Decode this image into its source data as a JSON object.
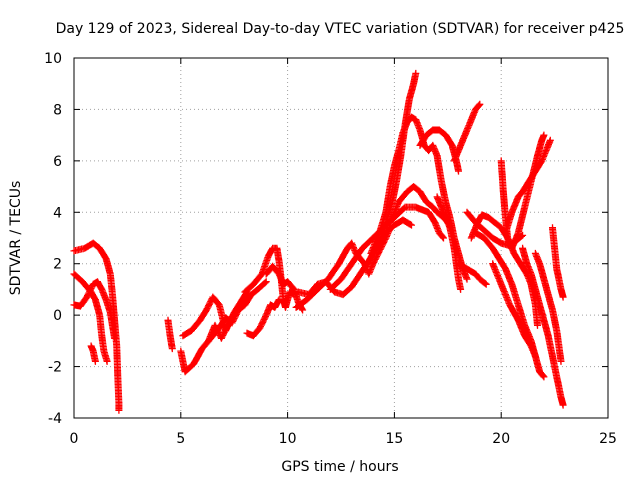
{
  "chart_data": {
    "type": "scatter",
    "title": "Day 129 of 2023, Sidereal Day-to-day VTEC variation (SDTVAR) for receiver p425",
    "xlabel": "GPS time / hours",
    "ylabel": "SDTVAR / TECUs",
    "xlim": [
      0,
      25
    ],
    "ylim": [
      -4,
      10
    ],
    "xticks": [
      "0",
      "5",
      "10",
      "15",
      "20",
      "25"
    ],
    "yticks": [
      "-4",
      "-2",
      "0",
      "2",
      "4",
      "6",
      "8",
      "10"
    ],
    "grid": true,
    "marker": "plus",
    "series_color": "#ff0000",
    "tracks": [
      [
        [
          0.0,
          2.5
        ],
        [
          0.5,
          2.6
        ],
        [
          0.9,
          2.8
        ],
        [
          1.2,
          2.6
        ],
        [
          1.5,
          2.2
        ],
        [
          1.7,
          1.6
        ],
        [
          1.8,
          0.8
        ],
        [
          1.9,
          -0.2
        ],
        [
          2.0,
          -1.2
        ],
        [
          2.05,
          -2.4
        ],
        [
          2.1,
          -3.4
        ],
        [
          2.1,
          -3.7
        ]
      ],
      [
        [
          0.0,
          1.6
        ],
        [
          0.4,
          1.3
        ],
        [
          0.8,
          0.9
        ],
        [
          1.0,
          0.6
        ],
        [
          1.2,
          0.0
        ],
        [
          1.3,
          -0.8
        ],
        [
          1.4,
          -1.4
        ],
        [
          1.55,
          -1.8
        ]
      ],
      [
        [
          0.0,
          0.4
        ],
        [
          0.3,
          0.35
        ],
        [
          0.6,
          0.7
        ],
        [
          0.9,
          1.2
        ],
        [
          1.1,
          1.3
        ],
        [
          1.3,
          1.0
        ],
        [
          1.5,
          0.6
        ],
        [
          1.7,
          0.1
        ],
        [
          1.8,
          -0.4
        ],
        [
          1.9,
          -0.9
        ]
      ],
      [
        [
          0.8,
          -1.2
        ],
        [
          0.9,
          -1.4
        ],
        [
          1.0,
          -1.8
        ]
      ],
      [
        [
          4.4,
          -0.2
        ],
        [
          4.5,
          -0.8
        ],
        [
          4.6,
          -1.3
        ]
      ],
      [
        [
          5.0,
          -1.4
        ],
        [
          5.2,
          -2.2
        ],
        [
          5.6,
          -1.9
        ],
        [
          6.0,
          -1.3
        ],
        [
          6.4,
          -0.9
        ],
        [
          6.8,
          -0.5
        ],
        [
          7.1,
          -0.1
        ],
        [
          7.4,
          -0.3
        ],
        [
          7.7,
          0.2
        ],
        [
          8.0,
          0.4
        ],
        [
          8.3,
          0.8
        ],
        [
          8.6,
          1.0
        ],
        [
          9.0,
          1.3
        ]
      ],
      [
        [
          5.1,
          -0.8
        ],
        [
          5.5,
          -0.6
        ],
        [
          5.9,
          -0.2
        ],
        [
          6.2,
          0.2
        ],
        [
          6.5,
          0.7
        ],
        [
          6.8,
          0.4
        ],
        [
          7.1,
          -0.6
        ],
        [
          7.5,
          0.1
        ],
        [
          7.8,
          0.5
        ],
        [
          8.1,
          0.9
        ]
      ],
      [
        [
          6.3,
          -1.0
        ],
        [
          6.6,
          -0.4
        ],
        [
          6.9,
          -0.9
        ],
        [
          7.2,
          -0.4
        ]
      ],
      [
        [
          8.0,
          0.9
        ],
        [
          8.4,
          1.2
        ],
        [
          8.8,
          1.6
        ],
        [
          9.1,
          2.3
        ],
        [
          9.3,
          2.6
        ],
        [
          9.5,
          2.6
        ],
        [
          9.6,
          2.1
        ],
        [
          9.7,
          1.4
        ],
        [
          9.8,
          0.6
        ],
        [
          9.9,
          0.3
        ],
        [
          10.1,
          0.9
        ],
        [
          10.3,
          0.8
        ]
      ],
      [
        [
          8.1,
          -0.7
        ],
        [
          8.4,
          -0.8
        ],
        [
          8.7,
          -0.5
        ],
        [
          9.0,
          0.0
        ],
        [
          9.2,
          0.4
        ],
        [
          9.4,
          0.3
        ],
        [
          9.6,
          0.6
        ]
      ],
      [
        [
          9.0,
          1.6
        ],
        [
          9.3,
          1.9
        ],
        [
          9.6,
          1.6
        ],
        [
          9.8,
          1.2
        ],
        [
          10.0,
          1.3
        ],
        [
          10.3,
          1.0
        ],
        [
          10.5,
          0.5
        ],
        [
          10.7,
          0.2
        ]
      ],
      [
        [
          10.4,
          0.3
        ],
        [
          10.9,
          0.6
        ],
        [
          11.4,
          1.0
        ],
        [
          11.9,
          1.4
        ],
        [
          12.4,
          2.0
        ],
        [
          12.8,
          2.6
        ],
        [
          13.0,
          2.8
        ],
        [
          13.2,
          2.4
        ],
        [
          13.6,
          2.0
        ],
        [
          13.8,
          1.6
        ],
        [
          14.0,
          2.0
        ],
        [
          14.3,
          2.5
        ],
        [
          14.6,
          3.0
        ],
        [
          14.8,
          3.4
        ]
      ],
      [
        [
          10.5,
          0.9
        ],
        [
          11.0,
          0.8
        ],
        [
          11.4,
          1.2
        ],
        [
          11.8,
          1.3
        ],
        [
          12.2,
          0.9
        ],
        [
          12.6,
          0.8
        ],
        [
          13.0,
          1.1
        ],
        [
          13.4,
          1.6
        ],
        [
          13.8,
          2.1
        ],
        [
          14.2,
          2.7
        ],
        [
          14.6,
          3.2
        ],
        [
          15.0,
          3.5
        ],
        [
          15.4,
          3.7
        ],
        [
          15.8,
          3.5
        ]
      ],
      [
        [
          12.0,
          1.0
        ],
        [
          12.5,
          1.4
        ],
        [
          13.0,
          2.0
        ],
        [
          13.5,
          2.6
        ],
        [
          14.0,
          3.0
        ],
        [
          14.5,
          3.4
        ],
        [
          15.0,
          3.8
        ],
        [
          15.5,
          4.2
        ],
        [
          16.0,
          4.2
        ],
        [
          16.3,
          4.1
        ],
        [
          16.6,
          4.0
        ],
        [
          16.9,
          3.6
        ],
        [
          17.1,
          3.2
        ],
        [
          17.3,
          3.0
        ]
      ],
      [
        [
          13.9,
          2.4
        ],
        [
          14.3,
          3.2
        ],
        [
          14.6,
          4.0
        ],
        [
          14.8,
          5.0
        ],
        [
          15.0,
          5.8
        ],
        [
          15.2,
          6.4
        ],
        [
          15.4,
          7.1
        ],
        [
          15.6,
          7.5
        ],
        [
          15.8,
          7.7
        ],
        [
          16.0,
          7.6
        ],
        [
          16.2,
          7.2
        ],
        [
          16.4,
          6.6
        ],
        [
          16.6,
          6.4
        ],
        [
          16.8,
          6.6
        ],
        [
          17.0,
          6.2
        ],
        [
          17.2,
          5.2
        ],
        [
          17.4,
          4.4
        ],
        [
          17.6,
          3.8
        ],
        [
          17.8,
          3.0
        ],
        [
          18.0,
          2.4
        ],
        [
          18.2,
          1.8
        ],
        [
          18.4,
          1.4
        ]
      ],
      [
        [
          14.3,
          2.8
        ],
        [
          14.6,
          3.6
        ],
        [
          14.9,
          4.4
        ],
        [
          15.1,
          5.2
        ],
        [
          15.3,
          6.2
        ],
        [
          15.5,
          7.4
        ],
        [
          15.7,
          8.4
        ],
        [
          15.9,
          9.0
        ],
        [
          16.0,
          9.4
        ]
      ],
      [
        [
          14.8,
          3.6
        ],
        [
          15.2,
          4.4
        ],
        [
          15.6,
          4.8
        ],
        [
          15.9,
          5.0
        ],
        [
          16.2,
          4.8
        ],
        [
          16.5,
          4.4
        ],
        [
          16.8,
          4.2
        ],
        [
          17.0,
          4.0
        ],
        [
          17.3,
          3.8
        ],
        [
          17.5,
          3.6
        ]
      ],
      [
        [
          16.2,
          6.6
        ],
        [
          16.5,
          7.0
        ],
        [
          16.8,
          7.2
        ],
        [
          17.1,
          7.2
        ],
        [
          17.4,
          7.0
        ],
        [
          17.7,
          6.6
        ],
        [
          17.9,
          6.0
        ],
        [
          18.0,
          5.6
        ]
      ],
      [
        [
          17.0,
          4.6
        ],
        [
          17.3,
          4.0
        ],
        [
          17.6,
          3.4
        ],
        [
          17.8,
          2.6
        ],
        [
          17.9,
          2.0
        ],
        [
          18.0,
          1.4
        ],
        [
          18.1,
          1.0
        ]
      ],
      [
        [
          17.8,
          6.0
        ],
        [
          18.1,
          6.6
        ],
        [
          18.4,
          7.2
        ],
        [
          18.6,
          7.6
        ],
        [
          18.8,
          8.0
        ],
        [
          19.0,
          8.2
        ]
      ],
      [
        [
          18.0,
          2.0
        ],
        [
          18.4,
          1.8
        ],
        [
          18.8,
          1.6
        ],
        [
          19.0,
          1.4
        ],
        [
          19.3,
          1.2
        ]
      ],
      [
        [
          18.4,
          4.0
        ],
        [
          18.8,
          3.6
        ],
        [
          19.2,
          3.3
        ],
        [
          19.6,
          3.0
        ],
        [
          20.0,
          2.8
        ],
        [
          20.4,
          2.7
        ],
        [
          20.7,
          2.9
        ],
        [
          21.0,
          3.1
        ]
      ],
      [
        [
          18.6,
          3.0
        ],
        [
          18.9,
          3.6
        ],
        [
          19.1,
          3.9
        ],
        [
          19.4,
          3.8
        ],
        [
          19.7,
          3.6
        ],
        [
          20.0,
          3.4
        ],
        [
          20.3,
          3.0
        ],
        [
          20.6,
          2.4
        ],
        [
          20.9,
          2.0
        ],
        [
          21.2,
          1.6
        ],
        [
          21.4,
          1.2
        ],
        [
          21.6,
          0.4
        ],
        [
          21.7,
          -0.4
        ]
      ],
      [
        [
          18.8,
          3.2
        ],
        [
          19.2,
          3.0
        ],
        [
          19.6,
          2.6
        ],
        [
          19.9,
          2.2
        ],
        [
          20.2,
          1.8
        ],
        [
          20.5,
          1.2
        ],
        [
          20.8,
          0.4
        ],
        [
          21.1,
          -0.4
        ],
        [
          21.4,
          -1.0
        ],
        [
          21.6,
          -1.6
        ],
        [
          21.8,
          -2.2
        ],
        [
          22.0,
          -2.4
        ]
      ],
      [
        [
          19.6,
          2.0
        ],
        [
          20.0,
          1.2
        ],
        [
          20.4,
          0.4
        ],
        [
          20.8,
          -0.2
        ],
        [
          21.1,
          -0.8
        ],
        [
          21.4,
          -1.2
        ],
        [
          21.6,
          -1.6
        ]
      ],
      [
        [
          20.0,
          6.0
        ],
        [
          20.1,
          4.8
        ],
        [
          20.2,
          3.8
        ],
        [
          20.3,
          3.0
        ],
        [
          20.5,
          2.6
        ],
        [
          20.8,
          3.2
        ],
        [
          21.1,
          4.2
        ],
        [
          21.4,
          5.2
        ],
        [
          21.7,
          6.2
        ],
        [
          21.9,
          6.8
        ],
        [
          22.0,
          7.0
        ]
      ],
      [
        [
          20.2,
          3.2
        ],
        [
          20.5,
          4.0
        ],
        [
          20.8,
          4.6
        ],
        [
          21.0,
          4.8
        ],
        [
          21.3,
          5.2
        ],
        [
          21.6,
          5.6
        ],
        [
          21.9,
          6.0
        ],
        [
          22.1,
          6.4
        ],
        [
          22.3,
          6.8
        ]
      ],
      [
        [
          21.0,
          2.6
        ],
        [
          21.2,
          2.0
        ],
        [
          21.4,
          1.6
        ],
        [
          21.6,
          1.0
        ],
        [
          21.8,
          0.4
        ],
        [
          22.0,
          -0.2
        ],
        [
          22.2,
          -0.8
        ],
        [
          22.4,
          -1.6
        ],
        [
          22.6,
          -2.4
        ],
        [
          22.8,
          -3.2
        ],
        [
          22.9,
          -3.5
        ]
      ],
      [
        [
          21.6,
          2.4
        ],
        [
          21.8,
          2.0
        ],
        [
          22.0,
          1.4
        ],
        [
          22.2,
          0.8
        ],
        [
          22.4,
          0.2
        ],
        [
          22.6,
          -0.6
        ],
        [
          22.7,
          -1.2
        ],
        [
          22.8,
          -1.8
        ]
      ],
      [
        [
          22.4,
          3.4
        ],
        [
          22.5,
          2.6
        ],
        [
          22.6,
          1.8
        ],
        [
          22.8,
          1.0
        ],
        [
          22.9,
          0.7
        ]
      ]
    ]
  }
}
